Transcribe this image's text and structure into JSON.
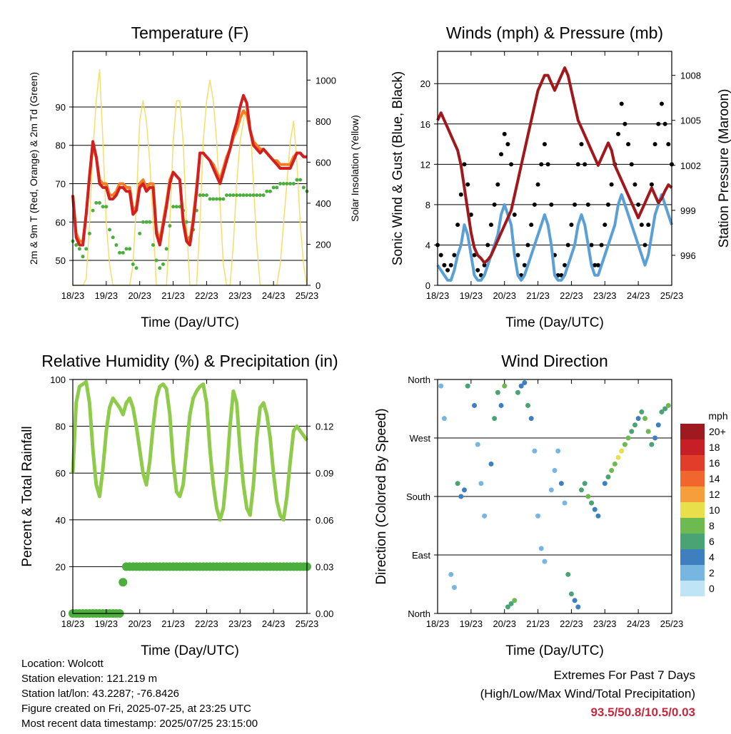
{
  "x_ticks": [
    "18/23",
    "19/23",
    "20/23",
    "21/23",
    "22/23",
    "23/23",
    "24/23",
    "25/23"
  ],
  "info": {
    "location": "Location: Wolcott",
    "elevation": "Station elevation: 121.219 m",
    "latlon": "Station lat/lon: 43.2287; -76.8426",
    "created": "Figure created on Fri, 2025-07-25, at 23:25 UTC",
    "latest": "Most recent data timestamp: 2025/07/25 23:15:00"
  },
  "extremes": {
    "title": "Extremes For Past 7 Days",
    "subtitle": "(High/Low/Max Wind/Total Precipitation)",
    "values": "93.5/50.8/10.5/0.03"
  },
  "colors": {
    "temp_red": "#d22020",
    "temp_orange": "#f57f20",
    "dewpoint_green": "#4cae3c",
    "solar_yellow": "#f6de6a",
    "wind_blue": "#5a9fd6",
    "gust_black": "#000000",
    "pressure_maroon": "#a0181c",
    "rh_green": "#8fcb4a",
    "precip_green": "#4cae3c"
  },
  "chart_data": [
    {
      "type": "line",
      "title": "Temperature (F)",
      "xlabel": "Time (Day/UTC)",
      "ylabel": "2m & 9m T (Red, Orange) & 2m Td (Green)",
      "ylabel_right": "Solar Insolation (Yellow)",
      "ylim": [
        43.5,
        104.5
      ],
      "ylim_right": [
        0,
        1140
      ],
      "yticks": [
        "50",
        "60",
        "70",
        "80",
        "90"
      ],
      "yticks_right": [
        "0",
        "200",
        "400",
        "600",
        "800",
        "1000"
      ],
      "x": [
        0,
        0.1,
        0.2,
        0.3,
        0.4,
        0.5,
        0.6,
        0.7,
        0.8,
        0.9,
        1,
        1.1,
        1.2,
        1.3,
        1.4,
        1.5,
        1.6,
        1.7,
        1.8,
        1.9,
        2,
        2.1,
        2.2,
        2.3,
        2.4,
        2.5,
        2.6,
        2.7,
        2.8,
        2.9,
        3,
        3.1,
        3.2,
        3.3,
        3.4,
        3.5,
        3.6,
        3.7,
        3.8,
        3.9,
        4,
        4.1,
        4.2,
        4.3,
        4.4,
        4.5,
        4.6,
        4.7,
        4.8,
        4.9,
        5,
        5.1,
        5.2,
        5.3,
        5.4,
        5.5,
        5.6,
        5.7,
        5.8,
        5.9,
        6,
        6.1,
        6.2,
        6.3,
        6.4,
        6.5,
        6.6,
        6.7,
        6.8,
        6.9,
        7
      ],
      "series": [
        {
          "name": "2m T",
          "values": [
            67,
            56,
            54,
            54,
            62,
            72,
            81,
            77,
            70,
            69,
            69,
            66,
            66,
            67,
            69,
            69,
            68,
            68,
            62,
            63,
            69,
            70,
            68,
            69,
            69,
            57,
            54,
            59,
            64,
            70,
            73,
            72,
            71,
            60,
            55,
            54,
            60,
            68,
            78,
            78,
            77,
            76,
            74,
            72,
            70,
            73,
            76,
            79,
            83,
            86,
            90,
            93,
            91,
            84,
            80,
            79,
            78,
            79,
            78,
            77,
            76,
            75,
            74,
            74,
            74,
            74,
            76,
            78,
            78,
            77,
            77
          ]
        },
        {
          "name": "9m T",
          "values": [
            67,
            57,
            55,
            55,
            62,
            72,
            80,
            77,
            71,
            70,
            70,
            67,
            67,
            68,
            70,
            70,
            69,
            69,
            63,
            64,
            70,
            71,
            69,
            70,
            70,
            58,
            55,
            60,
            65,
            71,
            73,
            72,
            71,
            61,
            56,
            55,
            61,
            69,
            78,
            78,
            77,
            76,
            75,
            73,
            71,
            74,
            77,
            79,
            82,
            84,
            87,
            89,
            88,
            84,
            81,
            80,
            79,
            79,
            78,
            77,
            76,
            76,
            75,
            75,
            75,
            75,
            77,
            78,
            78,
            77,
            77
          ]
        },
        {
          "name": "2m Td",
          "values": [
            55,
            54,
            53,
            51,
            53,
            57,
            63,
            65,
            65,
            64,
            64,
            58,
            56,
            54,
            52,
            52,
            53,
            53,
            49,
            48,
            57,
            60,
            60,
            60,
            54,
            50,
            48,
            49,
            53,
            59,
            64,
            64,
            64,
            63,
            60,
            56,
            58,
            63,
            67,
            67,
            67,
            66,
            66,
            66,
            66,
            66,
            67,
            67,
            67,
            67,
            67,
            67,
            67,
            67,
            67,
            67,
            67,
            67,
            68,
            68,
            69,
            69,
            70,
            70,
            70,
            70,
            70,
            71,
            71,
            69,
            68
          ]
        },
        {
          "name": "Solar",
          "values": [
            0,
            0,
            0,
            0,
            30,
            300,
            650,
            900,
            1050,
            700,
            300,
            100,
            0,
            0,
            0,
            0,
            0,
            0,
            100,
            400,
            800,
            900,
            800,
            600,
            300,
            0,
            0,
            0,
            0,
            300,
            700,
            900,
            900,
            700,
            300,
            0,
            0,
            0,
            300,
            700,
            900,
            1000,
            900,
            700,
            400,
            100,
            0,
            0,
            200,
            500,
            700,
            800,
            900,
            800,
            500,
            200,
            0,
            0,
            0,
            0,
            0,
            0,
            100,
            300,
            500,
            700,
            800,
            600,
            300,
            100,
            0
          ]
        }
      ]
    },
    {
      "type": "line",
      "title": "Winds (mph) & Pressure (mb)",
      "xlabel": "Time (Day/UTC)",
      "ylabel": "Sonic Wind & Gust (Blue, Black)",
      "ylabel_right": "Station Pressure (Maroon)",
      "ylim": [
        0,
        23.2
      ],
      "ylim_right": [
        994,
        1009.6
      ],
      "yticks": [
        "0",
        "4",
        "8",
        "12",
        "16",
        "20"
      ],
      "yticks_right": [
        "996",
        "999",
        "1002",
        "1005",
        "1008"
      ],
      "x": [
        0,
        0.1,
        0.2,
        0.3,
        0.4,
        0.5,
        0.6,
        0.7,
        0.8,
        0.9,
        1,
        1.1,
        1.2,
        1.3,
        1.4,
        1.5,
        1.6,
        1.7,
        1.8,
        1.9,
        2,
        2.1,
        2.2,
        2.3,
        2.4,
        2.5,
        2.6,
        2.7,
        2.8,
        2.9,
        3,
        3.1,
        3.2,
        3.3,
        3.4,
        3.5,
        3.6,
        3.7,
        3.8,
        3.9,
        4,
        4.1,
        4.2,
        4.3,
        4.4,
        4.5,
        4.6,
        4.7,
        4.8,
        4.9,
        5,
        5.1,
        5.2,
        5.3,
        5.4,
        5.5,
        5.6,
        5.7,
        5.8,
        5.9,
        6,
        6.1,
        6.2,
        6.3,
        6.4,
        6.5,
        6.6,
        6.7,
        6.8,
        6.9,
        7
      ],
      "series": [
        {
          "name": "Wind",
          "values": [
            2,
            1.5,
            1,
            0.5,
            0.5,
            1.5,
            3,
            4,
            6,
            5,
            3,
            1,
            0.5,
            0.5,
            1,
            2,
            3,
            4,
            5,
            7,
            8,
            7,
            6,
            3,
            1,
            0.5,
            1,
            2,
            3,
            4,
            5,
            6,
            7,
            6,
            4,
            1,
            0.5,
            0.5,
            1,
            2,
            3,
            4,
            6,
            7,
            6,
            4,
            2,
            1,
            1,
            2,
            3,
            4,
            5,
            6,
            8,
            9,
            8,
            7,
            6,
            5,
            4,
            3,
            2,
            3,
            5,
            7,
            8,
            9,
            8,
            7,
            6
          ]
        },
        {
          "name": "Gust",
          "values": [
            4,
            3,
            2,
            1.5,
            2,
            3,
            6,
            9,
            12,
            10,
            7,
            3,
            1.5,
            1,
            2,
            4,
            6,
            8,
            10,
            13,
            15,
            14,
            12,
            7,
            3,
            1,
            2,
            4,
            6,
            8,
            10,
            12,
            14,
            12,
            8,
            3,
            1,
            1,
            2,
            4,
            6,
            8,
            12,
            14,
            12,
            8,
            4,
            2,
            2,
            4,
            6,
            8,
            10,
            12,
            15,
            18,
            16,
            14,
            12,
            10,
            8,
            6,
            4,
            6,
            10,
            14,
            16,
            18,
            16,
            14,
            12
          ]
        },
        {
          "name": "Pressure",
          "values": [
            1005,
            1005.5,
            1005,
            1004.5,
            1004,
            1003.5,
            1003,
            1002,
            1000.5,
            999,
            997.5,
            996.5,
            996,
            995.8,
            995.5,
            995.7,
            996,
            996.5,
            997,
            997.5,
            998,
            998.5,
            999,
            1000,
            1001,
            1002,
            1003,
            1004,
            1005,
            1006,
            1007,
            1007.5,
            1008,
            1008,
            1007.5,
            1007,
            1007.5,
            1008,
            1008.5,
            1008,
            1007,
            1006,
            1005,
            1004.5,
            1004,
            1003.5,
            1003,
            1002.5,
            1002,
            1002.5,
            1003,
            1003.5,
            1003,
            1002,
            1001.5,
            1001,
            1000.5,
            1000,
            999.5,
            999,
            998.5,
            999,
            999.5,
            1000,
            1000.5,
            1000,
            999.5,
            999.8,
            1000.3,
            1000.7,
            1000.5
          ]
        }
      ]
    },
    {
      "type": "line",
      "title": "Relative Humidity (%) & Precipitation (in)",
      "xlabel": "Time (Day/UTC)",
      "ylabel": "Percent & Total Rainfall",
      "ylim": [
        0,
        100
      ],
      "ylim_right": [
        0,
        0.15
      ],
      "yticks": [
        "0",
        "20",
        "40",
        "60",
        "80",
        "100"
      ],
      "yticks_right": [
        "0.00",
        "0.03",
        "0.06",
        "0.09",
        "0.12"
      ],
      "x": [
        0,
        0.1,
        0.2,
        0.3,
        0.4,
        0.5,
        0.6,
        0.7,
        0.8,
        0.9,
        1,
        1.1,
        1.2,
        1.3,
        1.4,
        1.5,
        1.6,
        1.7,
        1.8,
        1.9,
        2,
        2.1,
        2.2,
        2.3,
        2.4,
        2.5,
        2.6,
        2.7,
        2.8,
        2.9,
        3,
        3.1,
        3.2,
        3.3,
        3.4,
        3.5,
        3.6,
        3.7,
        3.8,
        3.9,
        4,
        4.1,
        4.2,
        4.3,
        4.4,
        4.5,
        4.6,
        4.7,
        4.8,
        4.9,
        5,
        5.1,
        5.2,
        5.3,
        5.4,
        5.5,
        5.6,
        5.7,
        5.8,
        5.9,
        6,
        6.1,
        6.2,
        6.3,
        6.4,
        6.5,
        6.6,
        6.7,
        6.8,
        6.9,
        7
      ],
      "series": [
        {
          "name": "RH",
          "values": [
            60,
            90,
            97,
            98,
            99,
            90,
            70,
            55,
            50,
            62,
            78,
            88,
            92,
            90,
            88,
            85,
            90,
            92,
            88,
            80,
            70,
            60,
            55,
            65,
            80,
            92,
            97,
            98,
            96,
            85,
            65,
            52,
            50,
            55,
            70,
            85,
            92,
            95,
            97,
            98,
            90,
            70,
            55,
            45,
            40,
            45,
            60,
            80,
            95,
            90,
            70,
            55,
            45,
            42,
            55,
            75,
            88,
            90,
            85,
            75,
            60,
            48,
            42,
            40,
            50,
            65,
            78,
            80,
            78,
            76,
            74
          ]
        },
        {
          "name": "Precipitation",
          "values": [
            0,
            0,
            0,
            0,
            0,
            0,
            0,
            0,
            0,
            0,
            0,
            0,
            0,
            0,
            0,
            0.02,
            0.03,
            0.03,
            0.03,
            0.03,
            0.03,
            0.03,
            0.03,
            0.03,
            0.03,
            0.03,
            0.03,
            0.03,
            0.03,
            0.03,
            0.03,
            0.03,
            0.03,
            0.03,
            0.03,
            0.03,
            0.03,
            0.03,
            0.03,
            0.03,
            0.03,
            0.03,
            0.03,
            0.03,
            0.03,
            0.03,
            0.03,
            0.03,
            0.03,
            0.03,
            0.03,
            0.03,
            0.03,
            0.03,
            0.03,
            0.03,
            0.03,
            0.03,
            0.03,
            0.03,
            0.03,
            0.03,
            0.03,
            0.03,
            0.03,
            0.03,
            0.03,
            0.03,
            0.03,
            0.03,
            0.03
          ]
        }
      ]
    },
    {
      "type": "scatter",
      "title": "Wind Direction",
      "xlabel": "Time (Day/UTC)",
      "ylabel": "Direction (Colored By Speed)",
      "yticks": [
        "North",
        "East",
        "South",
        "West",
        "North"
      ],
      "ylim": [
        0,
        360
      ],
      "legend": {
        "title": "mph",
        "labels": [
          "20+",
          "18",
          "16",
          "14",
          "12",
          "10",
          "8",
          "6",
          "4",
          "2",
          "0"
        ],
        "colors": [
          "#9e1a1e",
          "#c62026",
          "#e23c2a",
          "#f0662c",
          "#f79e3c",
          "#e8df4a",
          "#6cba50",
          "#4aa374",
          "#3e7fc0",
          "#78b6e2",
          "#bfe4f6"
        ]
      },
      "x": [
        0.1,
        0.2,
        0.4,
        0.5,
        0.6,
        0.7,
        0.8,
        0.9,
        1.1,
        1.2,
        1.3,
        1.4,
        1.6,
        1.7,
        1.8,
        1.9,
        2.0,
        2.1,
        2.2,
        2.3,
        2.4,
        2.5,
        2.6,
        2.7,
        2.8,
        2.9,
        3.0,
        3.1,
        3.2,
        3.4,
        3.5,
        3.6,
        3.7,
        3.8,
        3.9,
        4.0,
        4.1,
        4.2,
        4.3,
        4.4,
        4.5,
        4.6,
        4.7,
        4.8,
        5.0,
        5.1,
        5.2,
        5.3,
        5.4,
        5.5,
        5.6,
        5.7,
        5.8,
        5.9,
        6.0,
        6.1,
        6.2,
        6.3,
        6.4,
        6.5,
        6.6,
        6.7,
        6.8,
        6.9
      ],
      "y": [
        350,
        300,
        60,
        40,
        200,
        180,
        190,
        350,
        320,
        260,
        200,
        150,
        230,
        300,
        340,
        320,
        350,
        10,
        15,
        20,
        340,
        350,
        355,
        320,
        300,
        250,
        150,
        100,
        80,
        190,
        220,
        250,
        200,
        170,
        60,
        30,
        20,
        10,
        190,
        200,
        180,
        170,
        160,
        150,
        200,
        210,
        220,
        230,
        240,
        250,
        260,
        270,
        280,
        290,
        300,
        310,
        300,
        280,
        260,
        270,
        290,
        310,
        315,
        320
      ],
      "speed": [
        1,
        2,
        1,
        2,
        6,
        4,
        3,
        5,
        4,
        2,
        2,
        1,
        3,
        5,
        6,
        4,
        7,
        5,
        6,
        7,
        6,
        4,
        3,
        5,
        4,
        2,
        1,
        1,
        1,
        2,
        1,
        2,
        3,
        1,
        5,
        6,
        4,
        3,
        5,
        6,
        7,
        6,
        4,
        3,
        4,
        5,
        7,
        8,
        9,
        10,
        8,
        7,
        6,
        5,
        4,
        6,
        7,
        8,
        6,
        4,
        3,
        5,
        6,
        7
      ]
    }
  ]
}
